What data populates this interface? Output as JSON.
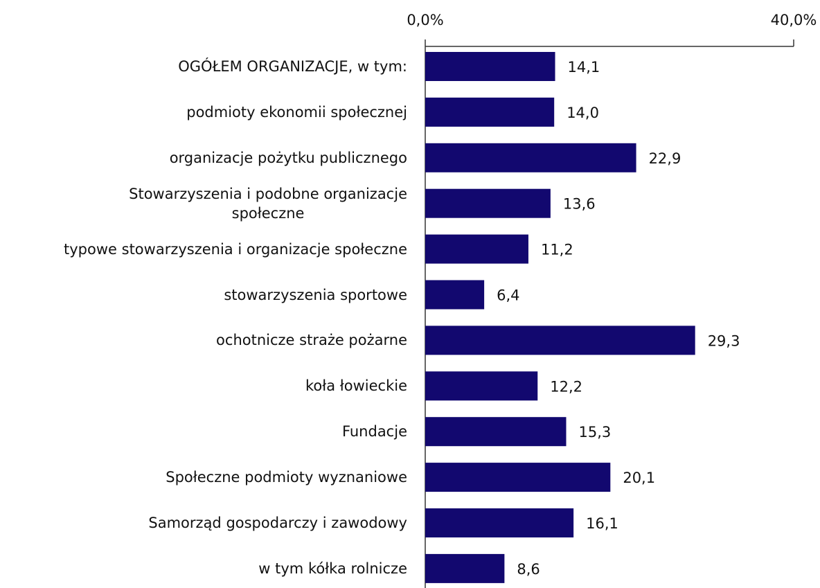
{
  "chart_data": {
    "type": "bar",
    "orientation": "horizontal",
    "categories": [
      "OGÓŁEM ORGANIZACJE, w tym:",
      "podmioty ekonomii społecznej",
      "organizacje pożytku publicznego",
      "Stowarzyszenia i podobne organizacje\nspołeczne",
      "typowe stowarzyszenia i organizacje społeczne",
      "stowarzyszenia sportowe",
      "ochotnicze straże pożarne",
      "koła łowieckie",
      "Fundacje",
      "Społeczne podmioty wyznaniowe",
      "Samorząd gospodarczy i zawodowy",
      "w tym kółka rolnicze"
    ],
    "values": [
      14.1,
      14.0,
      22.9,
      13.6,
      11.2,
      6.4,
      29.3,
      12.2,
      15.3,
      20.1,
      16.1,
      8.6
    ],
    "value_labels": [
      "14,1",
      "14,0",
      "22,9",
      "13,6",
      "11,2",
      "6,4",
      "29,3",
      "12,2",
      "15,3",
      "20,1",
      "16,1",
      "8,6"
    ],
    "color": "#12086f",
    "xlim": [
      0,
      40
    ],
    "xticks": [
      {
        "value": 0,
        "label": "0,0%"
      },
      {
        "value": 40,
        "label": "40,0%"
      }
    ]
  }
}
